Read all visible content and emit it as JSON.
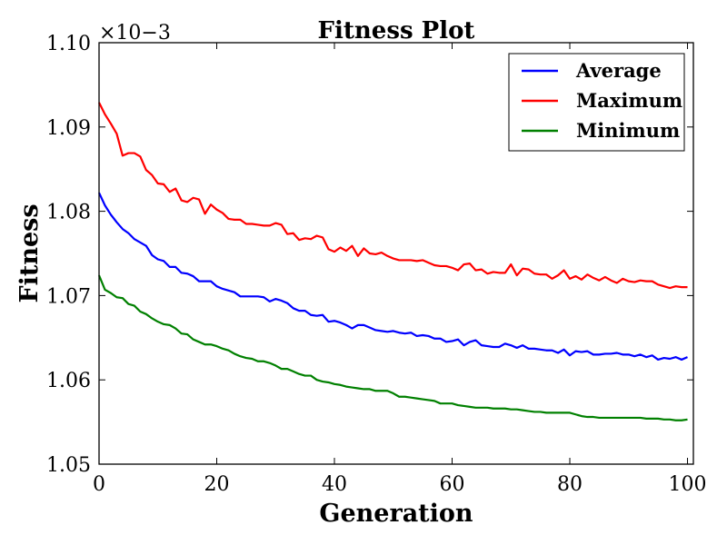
{
  "chart_data": {
    "type": "line",
    "title": "Fitness Plot",
    "xlabel": "Generation",
    "ylabel": "Fitness",
    "y_multiplier": "×10−3",
    "xlim": [
      0,
      101
    ],
    "ylim": [
      1.05,
      1.1
    ],
    "x_ticks": [
      0,
      20,
      40,
      60,
      80,
      100
    ],
    "x_tick_labels": [
      "0",
      "20",
      "40",
      "60",
      "80",
      "100"
    ],
    "y_ticks": [
      1.05,
      1.06,
      1.07,
      1.08,
      1.09,
      1.1
    ],
    "y_tick_labels": [
      "1.05",
      "1.06",
      "1.07",
      "1.08",
      "1.09",
      "1.10"
    ],
    "grid": false,
    "legend_position": "top-right",
    "x": [
      0,
      1,
      2,
      3,
      4,
      5,
      6,
      7,
      8,
      9,
      10,
      11,
      12,
      13,
      14,
      15,
      16,
      17,
      18,
      19,
      20,
      21,
      22,
      23,
      24,
      25,
      26,
      27,
      28,
      29,
      30,
      31,
      32,
      33,
      34,
      35,
      36,
      37,
      38,
      39,
      40,
      41,
      42,
      43,
      44,
      45,
      46,
      47,
      48,
      49,
      50,
      51,
      52,
      53,
      54,
      55,
      56,
      57,
      58,
      59,
      60,
      61,
      62,
      63,
      64,
      65,
      66,
      67,
      68,
      69,
      70,
      71,
      72,
      73,
      74,
      75,
      76,
      77,
      78,
      79,
      80,
      81,
      82,
      83,
      84,
      85,
      86,
      87,
      88,
      89,
      90,
      91,
      92,
      93,
      94,
      95,
      96,
      97,
      98,
      99,
      100
    ],
    "series": [
      {
        "name": "Average",
        "color": "#0000ff",
        "values": [
          1.0822,
          1.0807,
          1.0796,
          1.0787,
          1.0779,
          1.0774,
          1.0767,
          1.0763,
          1.0759,
          1.0748,
          1.0743,
          1.0741,
          1.0734,
          1.0734,
          1.0727,
          1.0726,
          1.0723,
          1.0717,
          1.0717,
          1.0717,
          1.0711,
          1.0708,
          1.0706,
          1.0704,
          1.0699,
          1.0699,
          1.0699,
          1.0699,
          1.0698,
          1.0693,
          1.0696,
          1.0694,
          1.0691,
          1.0685,
          1.0682,
          1.0682,
          1.0677,
          1.0676,
          1.0677,
          1.0669,
          1.067,
          1.0668,
          1.0665,
          1.0661,
          1.0665,
          1.0665,
          1.0662,
          1.0659,
          1.0658,
          1.0657,
          1.0658,
          1.0656,
          1.0655,
          1.0656,
          1.0652,
          1.0653,
          1.0652,
          1.0649,
          1.0649,
          1.0645,
          1.0646,
          1.0648,
          1.0641,
          1.0645,
          1.0647,
          1.0641,
          1.064,
          1.0639,
          1.0639,
          1.0643,
          1.0641,
          1.0638,
          1.0641,
          1.0637,
          1.0637,
          1.0636,
          1.0635,
          1.0635,
          1.0632,
          1.0636,
          1.0629,
          1.0634,
          1.0633,
          1.0634,
          1.063,
          1.063,
          1.0631,
          1.0631,
          1.0632,
          1.063,
          1.063,
          1.0628,
          1.063,
          1.0627,
          1.0629,
          1.0624,
          1.0626,
          1.0625,
          1.0627,
          1.0624,
          1.0627
        ]
      },
      {
        "name": "Maximum",
        "color": "#ff0000",
        "values": [
          1.0929,
          1.0915,
          1.0904,
          1.0892,
          1.0866,
          1.0869,
          1.0869,
          1.0865,
          1.0849,
          1.0843,
          1.0833,
          1.0832,
          1.0823,
          1.0827,
          1.0813,
          1.0811,
          1.0816,
          1.0814,
          1.0797,
          1.0808,
          1.0802,
          1.0798,
          1.0791,
          1.079,
          1.079,
          1.0785,
          1.0785,
          1.0784,
          1.0783,
          1.0783,
          1.0786,
          1.0784,
          1.0773,
          1.0774,
          1.0766,
          1.0768,
          1.0767,
          1.0771,
          1.0769,
          1.0755,
          1.0752,
          1.0757,
          1.0753,
          1.0759,
          1.0747,
          1.0756,
          1.075,
          1.0749,
          1.0751,
          1.0747,
          1.0744,
          1.0742,
          1.0742,
          1.0742,
          1.0741,
          1.0742,
          1.0739,
          1.0736,
          1.0735,
          1.0735,
          1.0733,
          1.073,
          1.0737,
          1.0738,
          1.073,
          1.0731,
          1.0726,
          1.0728,
          1.0727,
          1.0727,
          1.0737,
          1.0724,
          1.0732,
          1.0731,
          1.0726,
          1.0725,
          1.0725,
          1.072,
          1.0724,
          1.073,
          1.072,
          1.0723,
          1.0719,
          1.0725,
          1.0721,
          1.0718,
          1.0722,
          1.0718,
          1.0715,
          1.072,
          1.0717,
          1.0716,
          1.0718,
          1.0717,
          1.0717,
          1.0713,
          1.0711,
          1.0709,
          1.0711,
          1.071,
          1.071
        ]
      },
      {
        "name": "Minimum",
        "color": "#008000",
        "values": [
          1.0724,
          1.0707,
          1.0703,
          1.0698,
          1.0697,
          1.069,
          1.0688,
          1.0681,
          1.0678,
          1.0673,
          1.0669,
          1.0666,
          1.0665,
          1.0661,
          1.0655,
          1.0654,
          1.0648,
          1.0645,
          1.0642,
          1.0642,
          1.064,
          1.0637,
          1.0635,
          1.0631,
          1.0628,
          1.0626,
          1.0625,
          1.0622,
          1.0622,
          1.062,
          1.0617,
          1.0613,
          1.0613,
          1.061,
          1.0607,
          1.0605,
          1.0605,
          1.06,
          1.0598,
          1.0597,
          1.0595,
          1.0594,
          1.0592,
          1.0591,
          1.059,
          1.0589,
          1.0589,
          1.0587,
          1.0587,
          1.0587,
          1.0584,
          1.058,
          1.058,
          1.0579,
          1.0578,
          1.0577,
          1.0576,
          1.0575,
          1.0572,
          1.0572,
          1.0572,
          1.057,
          1.0569,
          1.0568,
          1.0567,
          1.0567,
          1.0567,
          1.0566,
          1.0566,
          1.0566,
          1.0565,
          1.0565,
          1.0564,
          1.0563,
          1.0562,
          1.0562,
          1.0561,
          1.0561,
          1.0561,
          1.0561,
          1.0561,
          1.0559,
          1.0557,
          1.0556,
          1.0556,
          1.0555,
          1.0555,
          1.0555,
          1.0555,
          1.0555,
          1.0555,
          1.0555,
          1.0555,
          1.0554,
          1.0554,
          1.0554,
          1.0553,
          1.0553,
          1.0552,
          1.0552,
          1.0553
        ]
      }
    ]
  }
}
